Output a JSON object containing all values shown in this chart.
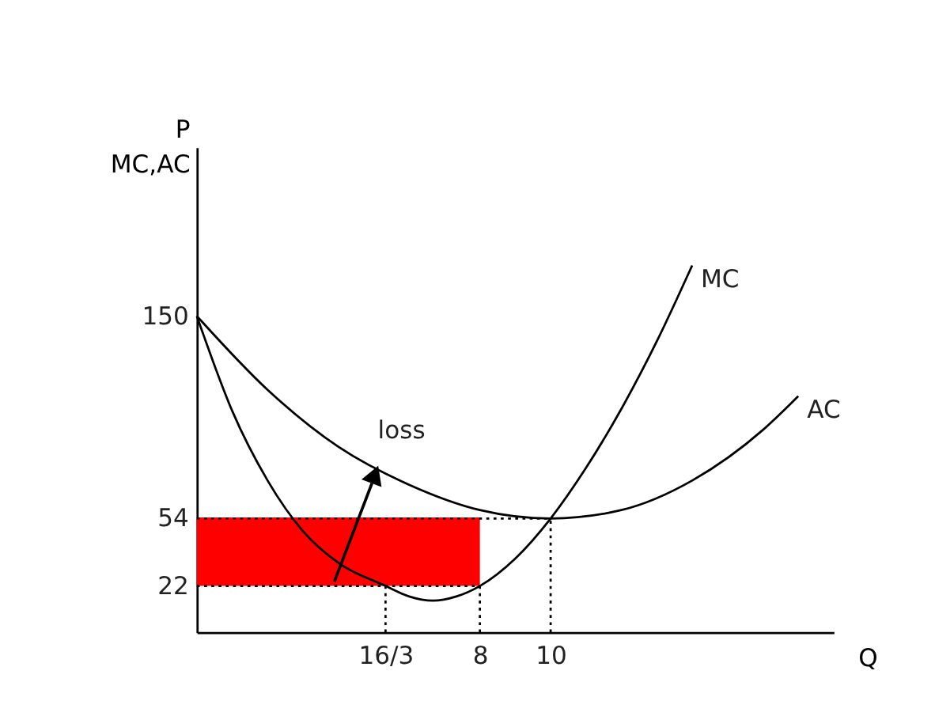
{
  "chart_data": {
    "type": "line",
    "xlabel": "Q",
    "ylabel": "P\nMC,AC",
    "xlim": [
      0,
      18
    ],
    "ylim": [
      0,
      230
    ],
    "xticks": [
      {
        "value": 5.333,
        "label": "16/3"
      },
      8,
      10
    ],
    "yticks": [
      22,
      54,
      150
    ],
    "grid": false,
    "marker": "none",
    "annotations": [
      "loss"
    ],
    "series": [
      {
        "type": "line",
        "color": "#ff0000",
        "x": [
          0,
          4,
          8
        ],
        "values": [
          54,
          54,
          54
        ],
        "lower": [
          22,
          22,
          22
        ],
        "upper": [
          54,
          54,
          54
        ]
      },
      {
        "name": "MC",
        "color": "#000000",
        "line_style": "solid",
        "x": [
          0,
          1,
          2,
          3,
          4,
          5.333,
          6,
          6.667,
          7.333,
          8,
          9,
          10,
          11,
          12,
          13,
          14
        ],
        "values": [
          150,
          105,
          72,
          48,
          33,
          22,
          17,
          15,
          17,
          22,
          35,
          54,
          78,
          106,
          138,
          174
        ]
      },
      {
        "name": "AC",
        "color": "#000000",
        "line_style": "solid",
        "x": [
          0,
          2,
          4,
          6,
          8,
          10,
          12,
          14,
          16,
          17
        ],
        "values": [
          150,
          115,
          88,
          70,
          58,
          54,
          58,
          72,
          96,
          112
        ]
      },
      {
        "color": "#000000",
        "line_style": "dotted",
        "x": [
          0,
          10
        ],
        "values": [
          54,
          54
        ]
      },
      {
        "color": "#000000",
        "line_style": "dotted",
        "x": [
          0,
          8
        ],
        "values": [
          22,
          22
        ]
      },
      {
        "color": "#000000",
        "line_style": "dotted",
        "x": [
          5.333,
          5.333
        ],
        "values": [
          0,
          22
        ]
      },
      {
        "color": "#000000",
        "line_style": "dotted",
        "x": [
          8,
          8
        ],
        "values": [
          0,
          22
        ]
      },
      {
        "color": "#000000",
        "line_style": "dotted",
        "x": [
          10,
          10
        ],
        "values": [
          0,
          54
        ]
      }
    ]
  }
}
